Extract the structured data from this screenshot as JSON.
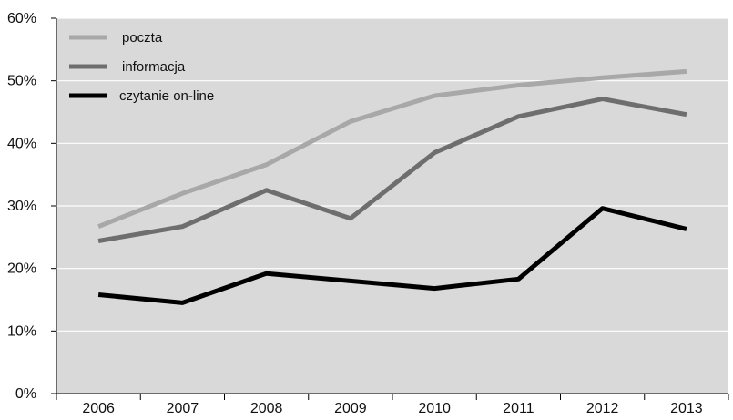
{
  "chart_data": {
    "type": "line",
    "title": "",
    "xlabel": "",
    "ylabel": "",
    "categories": [
      "2006",
      "2007",
      "2008",
      "2009",
      "2010",
      "2011",
      "2012",
      "2013"
    ],
    "ylim": [
      0,
      60
    ],
    "y_ticks": [
      0,
      10,
      20,
      30,
      40,
      50,
      60
    ],
    "y_tick_labels": [
      "0%",
      "10%",
      "20%",
      "30%",
      "40%",
      "50%",
      "60%"
    ],
    "grid": {
      "horizontal": true,
      "vertical": false
    },
    "plot_background": "#d9d9d9",
    "legend_position": "top-left",
    "series": [
      {
        "name": "poczta",
        "color": "#a8a8a8",
        "values": [
          26.7,
          32.0,
          36.6,
          43.5,
          47.6,
          49.3,
          50.5,
          51.5
        ]
      },
      {
        "name": "informacja",
        "color": "#6e6e6e",
        "values": [
          24.4,
          26.7,
          32.5,
          28.0,
          38.5,
          44.3,
          47.1,
          44.6
        ]
      },
      {
        "name": "czytanie on-line",
        "color": "#000000",
        "values": [
          15.8,
          14.5,
          19.2,
          18.0,
          16.8,
          18.3,
          29.6,
          26.3
        ]
      }
    ]
  }
}
